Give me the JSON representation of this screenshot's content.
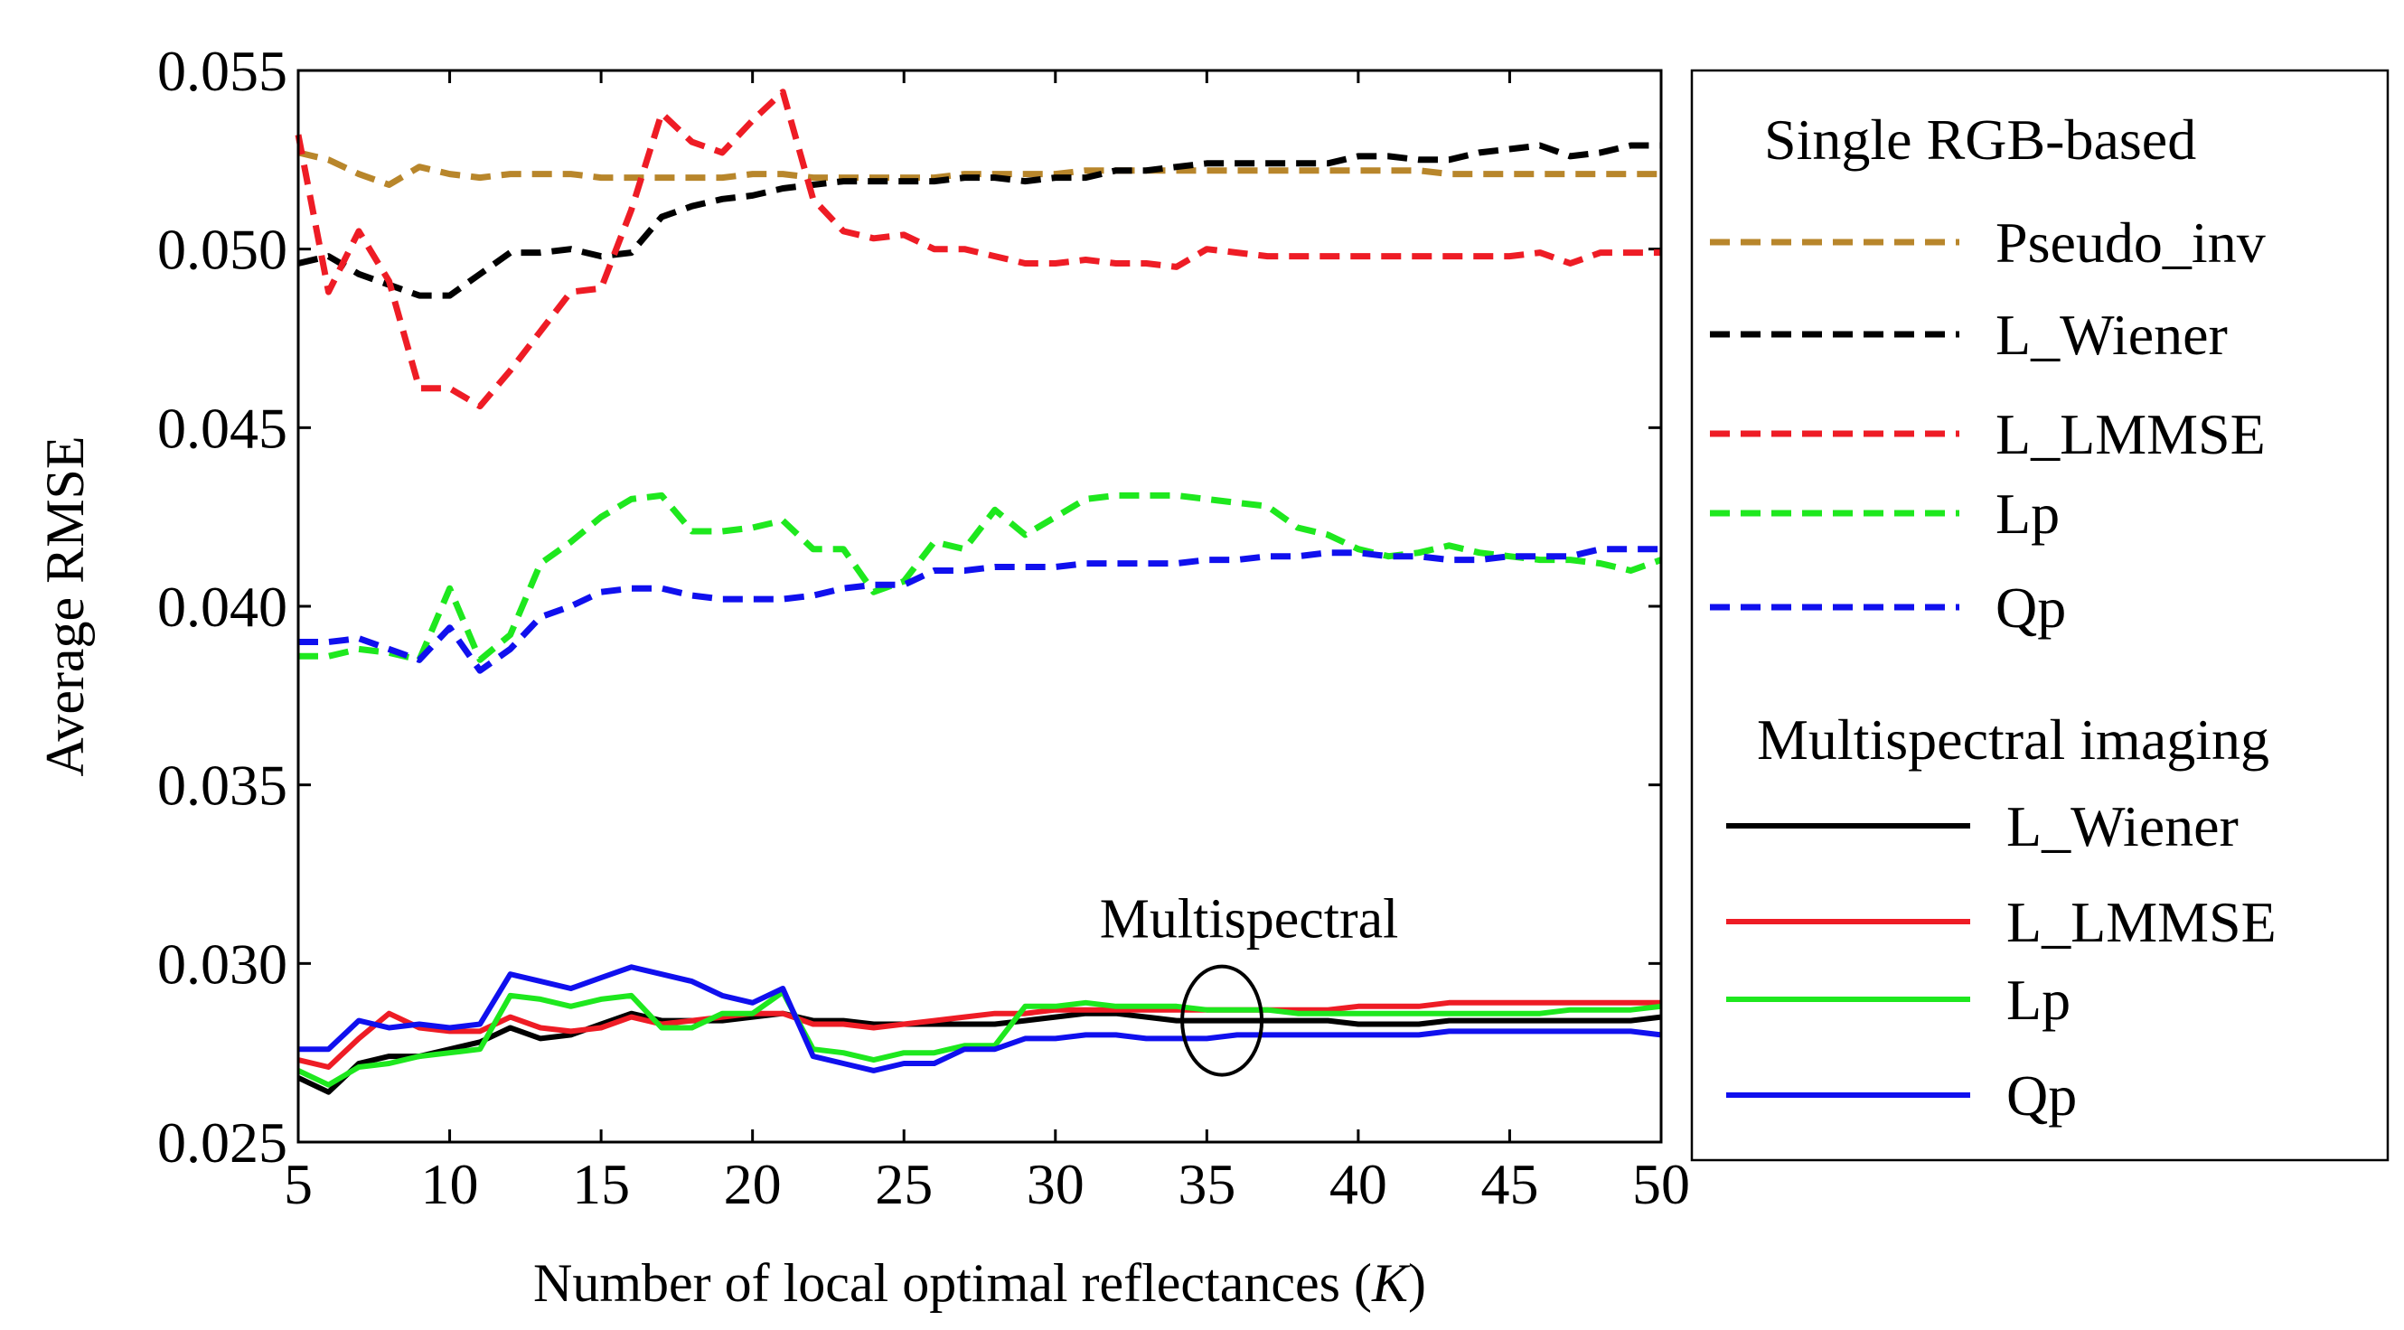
{
  "chart_data": {
    "type": "line",
    "title": "",
    "xlabel": "Number of local optimal reflectances (K)",
    "xlabel_parts": [
      "Number of local optimal reflectances (",
      "K",
      ")"
    ],
    "ylabel": "Average RMSE",
    "xlim": [
      5,
      50
    ],
    "ylim": [
      0.025,
      0.055
    ],
    "xticks": [
      5,
      10,
      15,
      20,
      25,
      30,
      35,
      40,
      45,
      50
    ],
    "yticks": [
      "0.025",
      "0.030",
      "0.035",
      "0.040",
      "0.045",
      "0.050",
      "0.055"
    ],
    "grid": false,
    "legend_position": "right",
    "legend_groups": [
      {
        "title": "Single RGB-based",
        "series": [
          "Pseudo_inv",
          "L_Wiener",
          "L_LMMSE",
          "Lp",
          "Qp"
        ]
      },
      {
        "title": "Multispectral imaging",
        "series": [
          "L_Wiener",
          "L_LMMSE",
          "Lp",
          "Qp"
        ]
      }
    ],
    "annotation": {
      "text": "Multispectral",
      "x": 35.5,
      "y": 0.0284
    },
    "x": [
      5,
      6,
      7,
      8,
      9,
      10,
      11,
      12,
      13,
      14,
      15,
      16,
      17,
      18,
      19,
      20,
      21,
      22,
      23,
      24,
      25,
      26,
      27,
      28,
      29,
      30,
      31,
      32,
      33,
      34,
      35,
      36,
      37,
      38,
      39,
      40,
      41,
      42,
      43,
      44,
      45,
      46,
      47,
      48,
      49,
      50
    ],
    "series": [
      {
        "name": "Pseudo_inv",
        "group": "Single RGB-based",
        "color": "#B8862B",
        "style": "dashed",
        "values": [
          0.0527,
          0.0525,
          0.0521,
          0.0518,
          0.0523,
          0.0521,
          0.052,
          0.0521,
          0.0521,
          0.0521,
          0.052,
          0.052,
          0.052,
          0.052,
          0.052,
          0.0521,
          0.0521,
          0.052,
          0.052,
          0.052,
          0.052,
          0.052,
          0.0521,
          0.0521,
          0.0521,
          0.0521,
          0.0522,
          0.0522,
          0.0522,
          0.0522,
          0.0522,
          0.0522,
          0.0522,
          0.0522,
          0.0522,
          0.0522,
          0.0522,
          0.0522,
          0.0521,
          0.0521,
          0.0521,
          0.0521,
          0.0521,
          0.0521,
          0.0521,
          0.0521
        ]
      },
      {
        "name": "L_Wiener",
        "group": "Single RGB-based",
        "color": "#000000",
        "style": "dashed",
        "values": [
          0.0496,
          0.0498,
          0.0493,
          0.049,
          0.0487,
          0.0487,
          0.0493,
          0.0499,
          0.0499,
          0.05,
          0.0498,
          0.0499,
          0.0509,
          0.0512,
          0.0514,
          0.0515,
          0.0517,
          0.0518,
          0.0519,
          0.0519,
          0.0519,
          0.0519,
          0.052,
          0.052,
          0.0519,
          0.052,
          0.052,
          0.0522,
          0.0522,
          0.0523,
          0.0524,
          0.0524,
          0.0524,
          0.0524,
          0.0524,
          0.0526,
          0.0526,
          0.0525,
          0.0525,
          0.0527,
          0.0528,
          0.0529,
          0.0526,
          0.0527,
          0.0529,
          0.0529
        ]
      },
      {
        "name": "L_LMMSE",
        "group": "Single RGB-based",
        "color": "#EE1C25",
        "style": "dashed",
        "values": [
          0.0532,
          0.0488,
          0.0505,
          0.0491,
          0.0461,
          0.0461,
          0.0456,
          0.0466,
          0.0477,
          0.0488,
          0.0489,
          0.0511,
          0.0538,
          0.053,
          0.0527,
          0.0536,
          0.0544,
          0.0514,
          0.0505,
          0.0503,
          0.0504,
          0.05,
          0.05,
          0.0498,
          0.0496,
          0.0496,
          0.0497,
          0.0496,
          0.0496,
          0.0495,
          0.05,
          0.0499,
          0.0498,
          0.0498,
          0.0498,
          0.0498,
          0.0498,
          0.0498,
          0.0498,
          0.0498,
          0.0498,
          0.0499,
          0.0496,
          0.0499,
          0.0499,
          0.0499
        ]
      },
      {
        "name": "Lp",
        "group": "Single RGB-based",
        "color": "#1EE81E",
        "style": "dashed",
        "values": [
          0.0386,
          0.0386,
          0.0388,
          0.0387,
          0.0385,
          0.0405,
          0.0385,
          0.0392,
          0.0412,
          0.0418,
          0.0425,
          0.043,
          0.0431,
          0.0421,
          0.0421,
          0.0422,
          0.0424,
          0.0416,
          0.0416,
          0.0404,
          0.0407,
          0.0418,
          0.0416,
          0.0427,
          0.042,
          0.0425,
          0.043,
          0.0431,
          0.0431,
          0.0431,
          0.043,
          0.0429,
          0.0428,
          0.0422,
          0.042,
          0.0416,
          0.0414,
          0.0415,
          0.0417,
          0.0415,
          0.0414,
          0.0413,
          0.0413,
          0.0412,
          0.041,
          0.0413
        ]
      },
      {
        "name": "Qp",
        "group": "Single RGB-based",
        "color": "#1010EE",
        "style": "dashed",
        "values": [
          0.039,
          0.039,
          0.0391,
          0.0388,
          0.0385,
          0.0394,
          0.0382,
          0.0388,
          0.0397,
          0.04,
          0.0404,
          0.0405,
          0.0405,
          0.0403,
          0.0402,
          0.0402,
          0.0402,
          0.0403,
          0.0405,
          0.0406,
          0.0406,
          0.041,
          0.041,
          0.0411,
          0.0411,
          0.0411,
          0.0412,
          0.0412,
          0.0412,
          0.0412,
          0.0413,
          0.0413,
          0.0414,
          0.0414,
          0.0415,
          0.0415,
          0.0414,
          0.0414,
          0.0413,
          0.0413,
          0.0414,
          0.0414,
          0.0414,
          0.0416,
          0.0416,
          0.0416
        ]
      },
      {
        "name": "L_Wiener",
        "group": "Multispectral imaging",
        "color": "#000000",
        "style": "solid",
        "values": [
          0.0268,
          0.0264,
          0.0272,
          0.0274,
          0.0274,
          0.0276,
          0.0278,
          0.0282,
          0.0279,
          0.028,
          0.0283,
          0.0286,
          0.0284,
          0.0284,
          0.0284,
          0.0285,
          0.0286,
          0.0284,
          0.0284,
          0.0283,
          0.0283,
          0.0283,
          0.0283,
          0.0283,
          0.0284,
          0.0285,
          0.0286,
          0.0286,
          0.0285,
          0.0284,
          0.0284,
          0.0284,
          0.0284,
          0.0284,
          0.0284,
          0.0283,
          0.0283,
          0.0283,
          0.0284,
          0.0284,
          0.0284,
          0.0284,
          0.0284,
          0.0284,
          0.0284,
          0.0285
        ]
      },
      {
        "name": "L_LMMSE",
        "group": "Multispectral imaging",
        "color": "#EE1C25",
        "style": "solid",
        "values": [
          0.0273,
          0.0271,
          0.0279,
          0.0286,
          0.0282,
          0.0281,
          0.0281,
          0.0285,
          0.0282,
          0.0281,
          0.0282,
          0.0285,
          0.0283,
          0.0284,
          0.0285,
          0.0286,
          0.0286,
          0.0283,
          0.0283,
          0.0282,
          0.0283,
          0.0284,
          0.0285,
          0.0286,
          0.0286,
          0.0287,
          0.0287,
          0.0287,
          0.0287,
          0.0287,
          0.0287,
          0.0287,
          0.0287,
          0.0287,
          0.0287,
          0.0288,
          0.0288,
          0.0288,
          0.0289,
          0.0289,
          0.0289,
          0.0289,
          0.0289,
          0.0289,
          0.0289,
          0.0289
        ]
      },
      {
        "name": "Lp",
        "group": "Multispectral imaging",
        "color": "#1EE81E",
        "style": "solid",
        "values": [
          0.027,
          0.0266,
          0.0271,
          0.0272,
          0.0274,
          0.0275,
          0.0276,
          0.0291,
          0.029,
          0.0288,
          0.029,
          0.0291,
          0.0282,
          0.0282,
          0.0286,
          0.0286,
          0.0292,
          0.0276,
          0.0275,
          0.0273,
          0.0275,
          0.0275,
          0.0277,
          0.0277,
          0.0288,
          0.0288,
          0.0289,
          0.0288,
          0.0288,
          0.0288,
          0.0287,
          0.0287,
          0.0287,
          0.0286,
          0.0286,
          0.0286,
          0.0286,
          0.0286,
          0.0286,
          0.0286,
          0.0286,
          0.0286,
          0.0287,
          0.0287,
          0.0287,
          0.0288
        ]
      },
      {
        "name": "Qp",
        "group": "Multispectral imaging",
        "color": "#1010EE",
        "style": "solid",
        "values": [
          0.0276,
          0.0276,
          0.0284,
          0.0282,
          0.0283,
          0.0282,
          0.0283,
          0.0297,
          0.0295,
          0.0293,
          0.0296,
          0.0299,
          0.0297,
          0.0295,
          0.0291,
          0.0289,
          0.0293,
          0.0274,
          0.0272,
          0.027,
          0.0272,
          0.0272,
          0.0276,
          0.0276,
          0.0279,
          0.0279,
          0.028,
          0.028,
          0.0279,
          0.0279,
          0.0279,
          0.028,
          0.028,
          0.028,
          0.028,
          0.028,
          0.028,
          0.028,
          0.0281,
          0.0281,
          0.0281,
          0.0281,
          0.0281,
          0.0281,
          0.0281,
          0.028
        ]
      }
    ]
  }
}
